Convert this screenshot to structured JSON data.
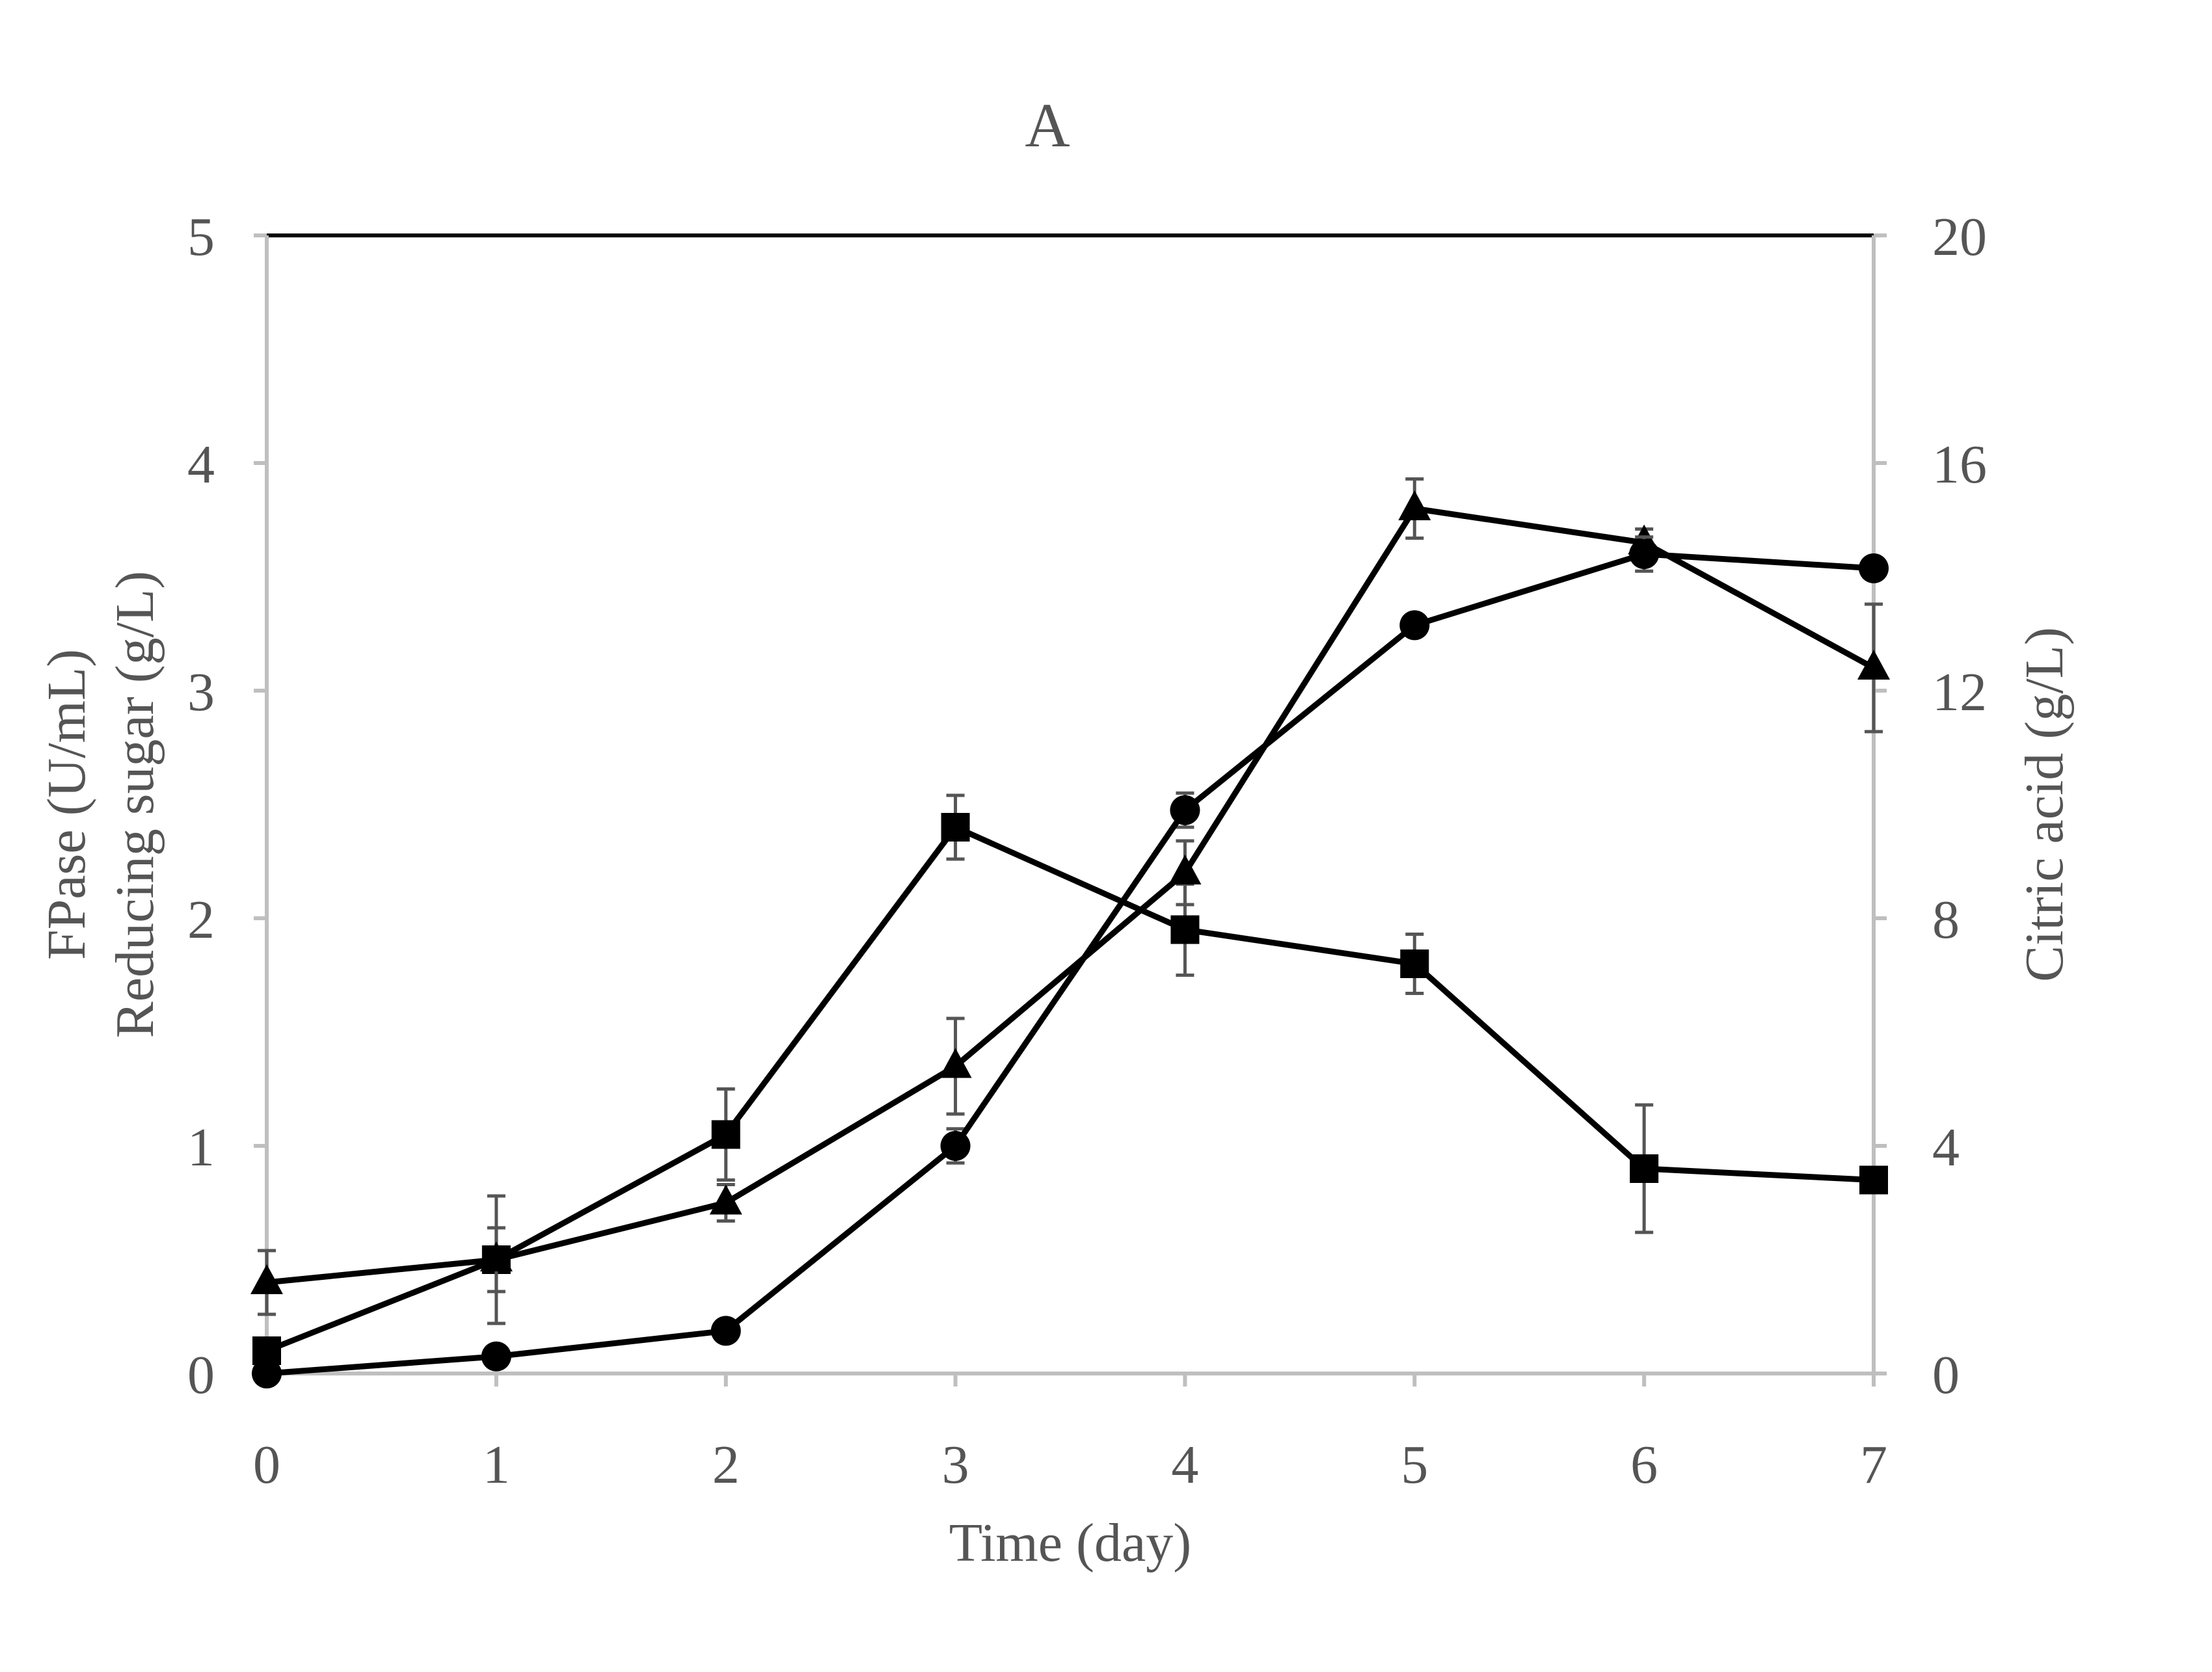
{
  "chart_data": {
    "type": "line",
    "title": "A",
    "xlabel": "Time (day)",
    "ylabel_lines": [
      "FPase (U/mL)",
      "Reducing sugar (g/L)"
    ],
    "y2label": "Citric acid (g/L)",
    "x": [
      0,
      1,
      2,
      3,
      4,
      5,
      6,
      7
    ],
    "xlim": [
      0,
      7
    ],
    "ylim": [
      0,
      5
    ],
    "y2lim": [
      0,
      20
    ],
    "x_ticks": [
      "0",
      "1",
      "2",
      "3",
      "4",
      "5",
      "6",
      "7"
    ],
    "y_ticks": [
      "0",
      "1",
      "2",
      "3",
      "4",
      "5"
    ],
    "y2_ticks": [
      "0",
      "4",
      "8",
      "12",
      "16",
      "20"
    ],
    "grid": false,
    "series": [
      {
        "name": "square-series",
        "marker": "square",
        "axis": "left",
        "values": [
          0.1,
          0.5,
          1.05,
          2.4,
          1.95,
          1.8,
          0.9,
          0.85
        ],
        "errors": [
          0.05,
          0.28,
          0.2,
          0.14,
          0.2,
          0.13,
          0.28,
          0.05
        ]
      },
      {
        "name": "triangle-series",
        "marker": "triangle",
        "axis": "left",
        "values": [
          0.4,
          0.5,
          0.75,
          1.35,
          2.2,
          3.8,
          3.65,
          3.1
        ],
        "errors": [
          0.14,
          0.14,
          0.08,
          0.21,
          0.14,
          0.13,
          0.06,
          0.28
        ]
      },
      {
        "name": "circle-series",
        "marker": "circle",
        "axis": "right",
        "values": [
          0,
          0.3,
          0.75,
          4.0,
          9.9,
          13.15,
          14.4,
          14.15
        ],
        "errors": [
          0.1,
          0.1,
          0.15,
          0.3,
          0.3,
          0.1,
          0.3,
          0.1
        ]
      }
    ]
  }
}
